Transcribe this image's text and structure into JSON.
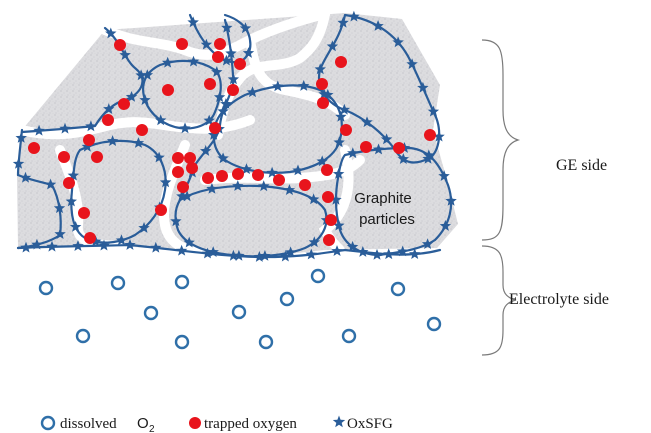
{
  "diagram": {
    "particle_label_line1": "Graphite",
    "particle_label_line2": "particles",
    "ge_side_label": "GE side",
    "electrolyte_side_label": "Electrolyte side"
  },
  "legend": {
    "dissolved_text": "dissolved",
    "dissolved_formula": "O",
    "dissolved_subscript": "2",
    "trapped_text": "trapped oxygen",
    "oxsfg_text": "OxSFG"
  },
  "colors": {
    "boundary": "#2a5d99",
    "trapped_oxygen": "#e8141c",
    "dissolved_o2": "#2f6fa8",
    "graphite_fill": "#d9d9dc",
    "text": "#1a1a1a"
  },
  "icons": {
    "dissolved": "open-circle",
    "trapped": "filled-red-circle",
    "oxsfg": "blue-star"
  }
}
